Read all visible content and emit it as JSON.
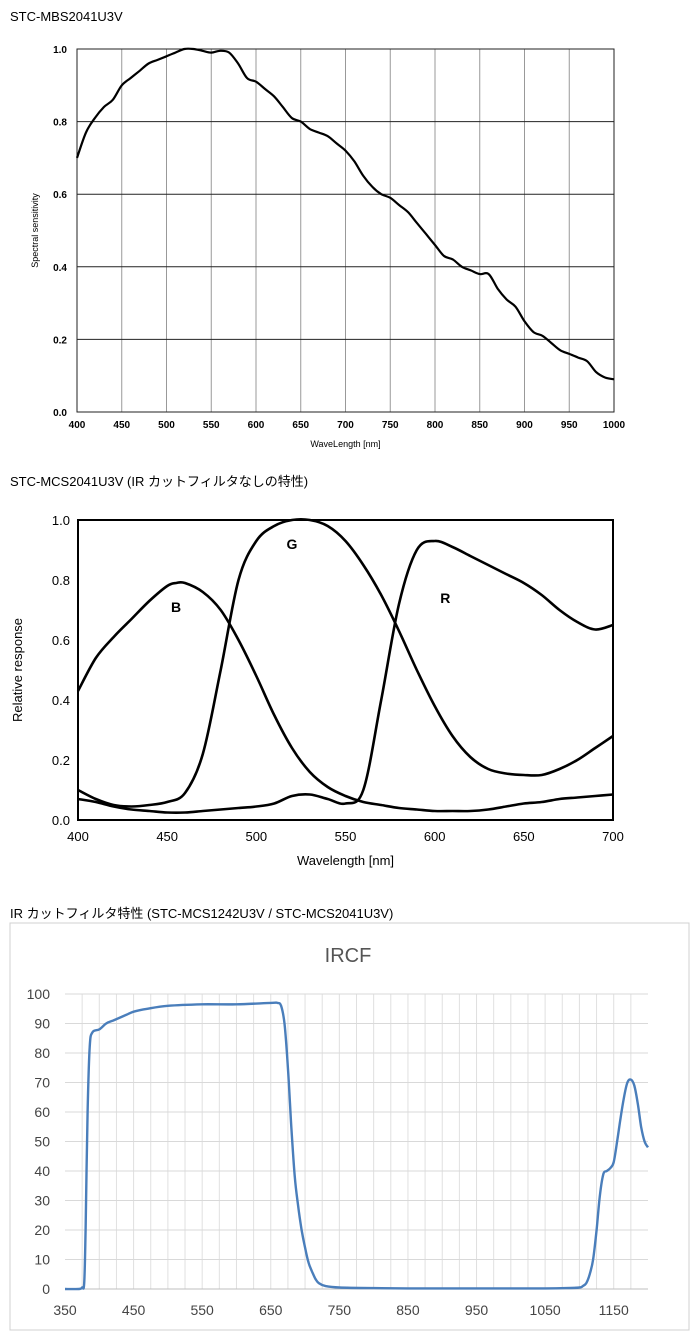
{
  "captions": {
    "chart1": "STC-MBS2041U3V",
    "chart2": "STC-MCS2041U3V (IR カットフィルタなしの特性)",
    "chart3": "IR カットフィルタ特性 (STC-MCS1242U3V / STC-MCS2041U3V)"
  },
  "chart_data": [
    {
      "type": "line",
      "xlabel": "WaveLength [nm]",
      "ylabel": "Spectral sensitivity",
      "xlim": [
        400,
        1000
      ],
      "ylim": [
        0,
        1.0
      ],
      "xticks": [
        400,
        450,
        500,
        550,
        600,
        650,
        700,
        750,
        800,
        850,
        900,
        950,
        1000
      ],
      "yticks": [
        0.0,
        0.2,
        0.4,
        0.6,
        0.8,
        1.0
      ],
      "ytick_labels": [
        "0.0",
        "0.2",
        "0.4",
        "0.6",
        "0.8",
        "1.0"
      ],
      "x_gridlines": [
        400,
        450,
        500,
        550,
        600,
        650,
        700,
        750,
        800,
        850,
        900,
        950,
        1000
      ],
      "grid": true,
      "line_color": "#000000",
      "series": [
        {
          "x": [
            400,
            410,
            420,
            430,
            440,
            450,
            460,
            470,
            480,
            490,
            500,
            510,
            520,
            530,
            540,
            550,
            560,
            570,
            580,
            590,
            600,
            610,
            620,
            630,
            640,
            650,
            660,
            670,
            680,
            690,
            700,
            710,
            720,
            730,
            740,
            750,
            760,
            770,
            780,
            790,
            800,
            810,
            820,
            830,
            840,
            850,
            860,
            870,
            880,
            890,
            900,
            910,
            920,
            930,
            940,
            950,
            960,
            970,
            980,
            990,
            1000
          ],
          "values": [
            0.7,
            0.77,
            0.81,
            0.84,
            0.86,
            0.9,
            0.92,
            0.94,
            0.96,
            0.97,
            0.98,
            0.99,
            1.0,
            1.0,
            0.995,
            0.99,
            0.995,
            0.99,
            0.96,
            0.92,
            0.91,
            0.89,
            0.87,
            0.84,
            0.81,
            0.8,
            0.78,
            0.77,
            0.76,
            0.74,
            0.72,
            0.69,
            0.65,
            0.62,
            0.6,
            0.59,
            0.57,
            0.55,
            0.52,
            0.49,
            0.46,
            0.43,
            0.42,
            0.4,
            0.39,
            0.38,
            0.38,
            0.34,
            0.31,
            0.29,
            0.25,
            0.22,
            0.21,
            0.19,
            0.17,
            0.16,
            0.15,
            0.14,
            0.11,
            0.095,
            0.09
          ]
        }
      ]
    },
    {
      "type": "line",
      "xlabel": "Wavelength [nm]",
      "ylabel": "Relative response",
      "xlim": [
        400,
        700
      ],
      "ylim": [
        0,
        1.0
      ],
      "xticks": [
        400,
        450,
        500,
        550,
        600,
        650,
        700
      ],
      "yticks": [
        0.0,
        0.2,
        0.4,
        0.6,
        0.8,
        1.0
      ],
      "ytick_labels": [
        "0.0",
        "0.2",
        "0.4",
        "0.6",
        "0.8",
        "1.0"
      ],
      "grid": false,
      "line_color": "#000000",
      "series": [
        {
          "name": "B",
          "label_at": [
            455,
            0.71
          ],
          "x": [
            400,
            410,
            420,
            430,
            440,
            450,
            455,
            460,
            470,
            480,
            490,
            500,
            510,
            520,
            530,
            540,
            550,
            560,
            570,
            580,
            590,
            600,
            610,
            620,
            630,
            640,
            650,
            660,
            670,
            680,
            690,
            700
          ],
          "values": [
            0.43,
            0.54,
            0.61,
            0.67,
            0.73,
            0.78,
            0.79,
            0.79,
            0.76,
            0.7,
            0.6,
            0.48,
            0.35,
            0.24,
            0.16,
            0.11,
            0.08,
            0.06,
            0.05,
            0.04,
            0.035,
            0.03,
            0.03,
            0.03,
            0.035,
            0.045,
            0.055,
            0.06,
            0.07,
            0.075,
            0.08,
            0.085
          ]
        },
        {
          "name": "G",
          "label_at": [
            520,
            0.92
          ],
          "x": [
            400,
            410,
            420,
            430,
            440,
            450,
            460,
            470,
            480,
            490,
            500,
            510,
            520,
            530,
            540,
            550,
            560,
            570,
            580,
            590,
            600,
            610,
            620,
            630,
            640,
            650,
            660,
            670,
            680,
            690,
            700
          ],
          "values": [
            0.1,
            0.07,
            0.05,
            0.045,
            0.05,
            0.06,
            0.09,
            0.22,
            0.5,
            0.8,
            0.93,
            0.98,
            1.0,
            1.0,
            0.98,
            0.93,
            0.85,
            0.75,
            0.63,
            0.5,
            0.38,
            0.28,
            0.21,
            0.17,
            0.155,
            0.15,
            0.15,
            0.17,
            0.2,
            0.24,
            0.28
          ]
        },
        {
          "name": "R",
          "label_at": [
            606,
            0.74
          ],
          "x": [
            400,
            410,
            420,
            430,
            440,
            450,
            460,
            470,
            480,
            490,
            500,
            510,
            520,
            530,
            540,
            550,
            560,
            570,
            580,
            590,
            600,
            610,
            620,
            630,
            640,
            650,
            660,
            670,
            680,
            690,
            700
          ],
          "values": [
            0.07,
            0.06,
            0.045,
            0.035,
            0.03,
            0.025,
            0.025,
            0.03,
            0.035,
            0.04,
            0.045,
            0.055,
            0.08,
            0.085,
            0.07,
            0.055,
            0.1,
            0.4,
            0.72,
            0.9,
            0.93,
            0.91,
            0.88,
            0.85,
            0.82,
            0.79,
            0.75,
            0.7,
            0.66,
            0.635,
            0.65
          ]
        }
      ]
    },
    {
      "type": "line",
      "title": "IRCF",
      "xlim": [
        350,
        1200
      ],
      "ylim": [
        0,
        100
      ],
      "xticks": [
        350,
        450,
        550,
        650,
        750,
        850,
        950,
        1050,
        1150
      ],
      "yticks": [
        0,
        10,
        20,
        30,
        40,
        50,
        60,
        70,
        80,
        90,
        100
      ],
      "x_gridlines_step": 25,
      "y_gridlines": [
        0,
        10,
        20,
        30,
        40,
        50,
        60,
        70,
        80,
        90,
        100
      ],
      "grid": true,
      "line_color": "#4a7ebb",
      "series": [
        {
          "x": [
            350,
            370,
            375,
            378,
            380,
            383,
            386,
            390,
            400,
            410,
            420,
            430,
            440,
            450,
            470,
            500,
            550,
            600,
            650,
            660,
            665,
            670,
            675,
            680,
            685,
            690,
            695,
            700,
            705,
            710,
            715,
            720,
            730,
            750,
            800,
            850,
            900,
            950,
            1000,
            1050,
            1080,
            1100,
            1105,
            1110,
            1115,
            1120,
            1125,
            1130,
            1135,
            1140,
            1145,
            1150,
            1155,
            1160,
            1165,
            1170,
            1175,
            1180,
            1185,
            1190,
            1195,
            1200
          ],
          "values": [
            0,
            0,
            0.5,
            2,
            20,
            60,
            82,
            87,
            88,
            90,
            91,
            92,
            93,
            94,
            95,
            96,
            96.5,
            96.5,
            97,
            97,
            96,
            90,
            75,
            55,
            38,
            28,
            20,
            14,
            9,
            6,
            3.5,
            2,
            1,
            0.5,
            0.3,
            0.2,
            0.2,
            0.2,
            0.2,
            0.2,
            0.3,
            0.5,
            1,
            2,
            5,
            10,
            20,
            32,
            39,
            40,
            41,
            43,
            50,
            58,
            65,
            70,
            71,
            69,
            63,
            55,
            50,
            48
          ]
        }
      ]
    }
  ]
}
